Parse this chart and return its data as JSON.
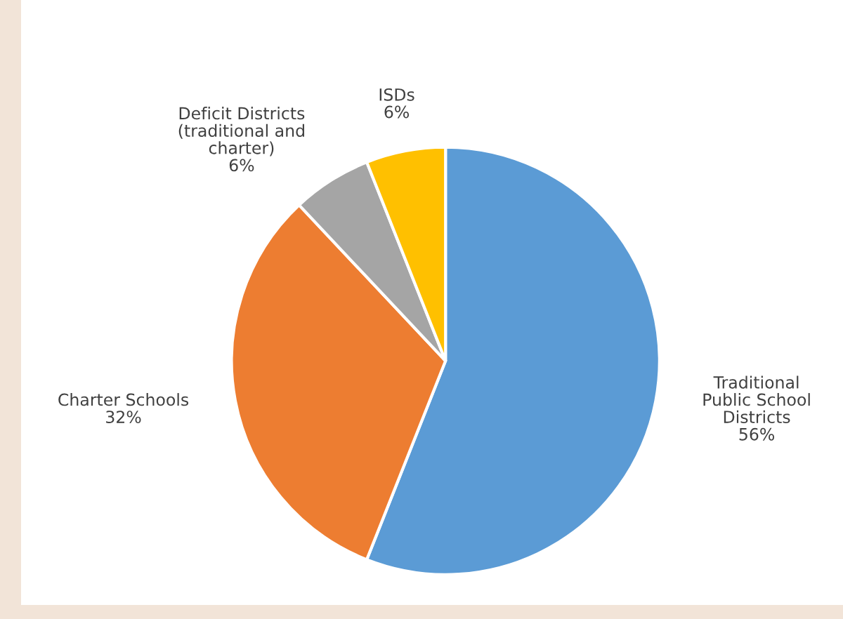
{
  "chart_data": {
    "type": "pie",
    "categories": [
      "Traditional\nPublic School\nDistricts",
      "Charter Schools",
      "Deficit Districts\n(traditional and\ncharter)",
      "ISDs"
    ],
    "values": [
      56,
      32,
      6,
      6
    ],
    "value_labels": [
      "56%",
      "32%",
      "6%",
      "6%"
    ],
    "colors": [
      "#5b9bd5",
      "#ed7d31",
      "#a5a5a5",
      "#ffc000"
    ],
    "legend": false
  }
}
